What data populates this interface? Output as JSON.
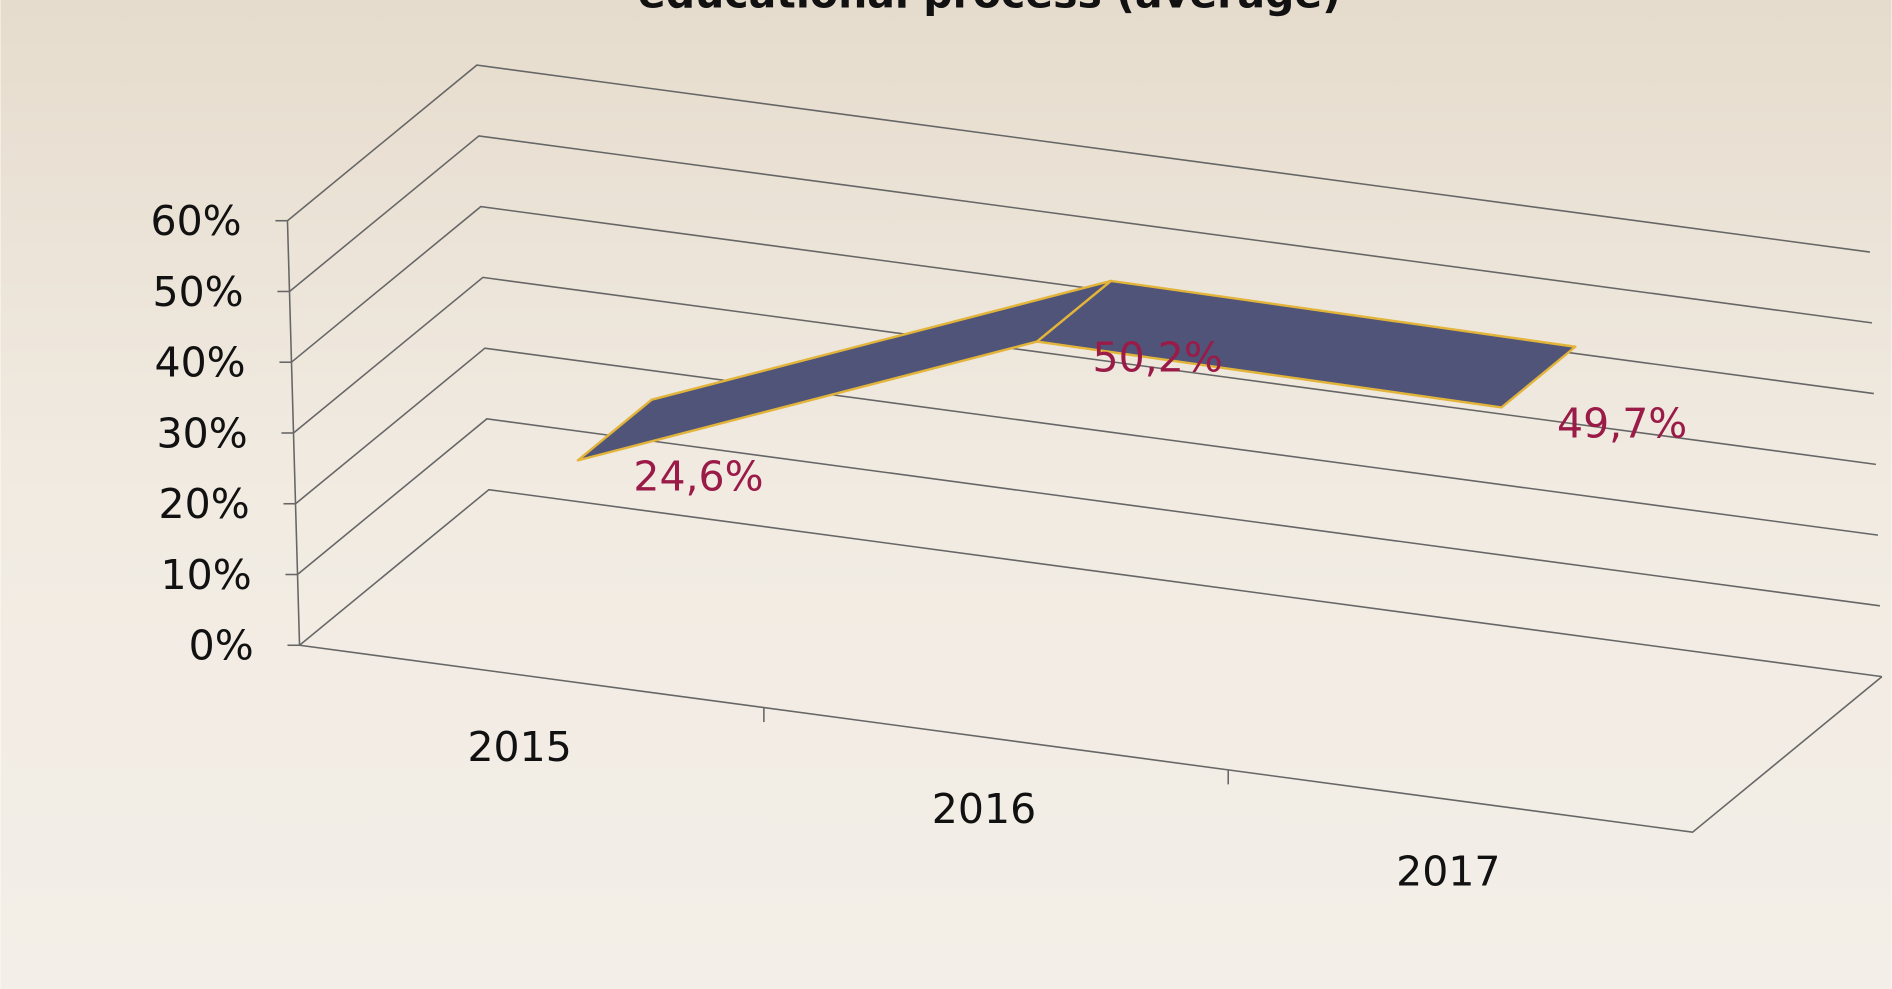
{
  "chart_data": {
    "type": "line3d",
    "title": "educational process (average)",
    "categories": [
      "2015",
      "2016",
      "2017"
    ],
    "values": [
      24.6,
      50.2,
      49.7
    ],
    "value_labels": [
      "24,6%",
      "50,2%",
      "49,7%"
    ],
    "color": "#4f5478",
    "edge_color": "#e3b43a",
    "label_color": "#9b1b48",
    "ylim": [
      0,
      60
    ],
    "yticks": [
      {
        "value": 0,
        "label": "0%"
      },
      {
        "value": 10,
        "label": "10%"
      },
      {
        "value": 20,
        "label": "20%"
      },
      {
        "value": 30,
        "label": "30%"
      },
      {
        "value": 40,
        "label": "40%"
      },
      {
        "value": 50,
        "label": "50%"
      },
      {
        "value": 60,
        "label": "60%"
      }
    ],
    "grid": true
  }
}
